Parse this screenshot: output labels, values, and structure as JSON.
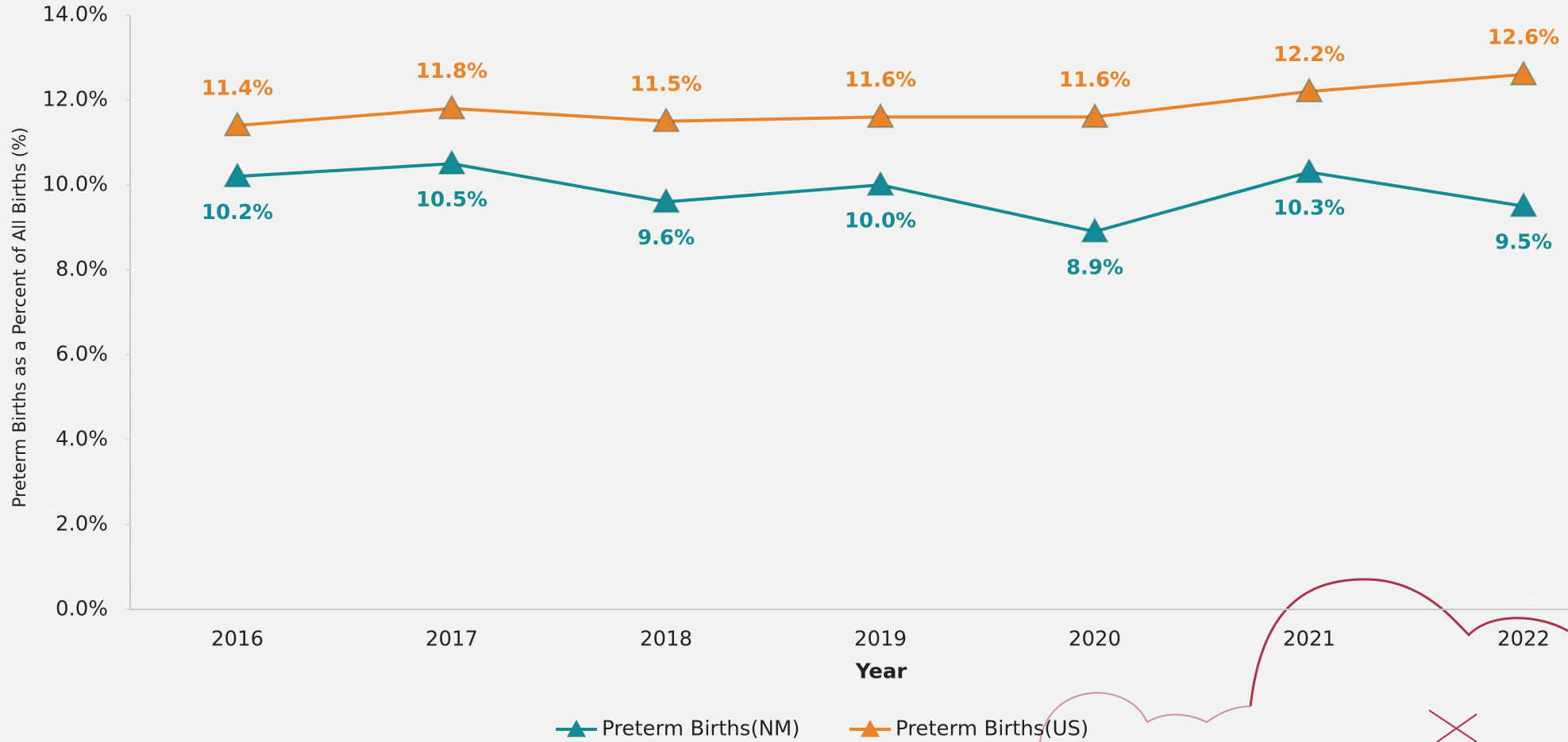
{
  "chart_data": {
    "type": "line",
    "x_label": "Year",
    "y_label": "Preterm Births as a Percent of All Births (%)",
    "categories": [
      "2016",
      "2017",
      "2018",
      "2019",
      "2020",
      "2021",
      "2022"
    ],
    "series": [
      {
        "name": "Preterm Births(NM)",
        "color": "#138a96",
        "values": [
          10.2,
          10.5,
          9.6,
          10.0,
          8.9,
          10.3,
          9.5
        ],
        "value_labels": [
          "10.2%",
          "10.5%",
          "9.6%",
          "10.0%",
          "8.9%",
          "10.3%",
          "9.5%"
        ]
      },
      {
        "name": "Preterm Births(US)",
        "color": "#e8832a",
        "values": [
          11.4,
          11.8,
          11.5,
          11.6,
          11.6,
          12.2,
          12.6
        ],
        "value_labels": [
          "11.4%",
          "11.8%",
          "11.5%",
          "11.6%",
          "11.6%",
          "12.2%",
          "12.6%"
        ]
      }
    ],
    "ylim": [
      0,
      14
    ],
    "yticks": [
      {
        "value": 0,
        "label": "0.0%"
      },
      {
        "value": 2,
        "label": "2.0%"
      },
      {
        "value": 4,
        "label": "4.0%"
      },
      {
        "value": 6,
        "label": "6.0%"
      },
      {
        "value": 8,
        "label": "8.0%"
      },
      {
        "value": 10,
        "label": "10.0%"
      },
      {
        "value": 12,
        "label": "12.0%"
      },
      {
        "value": 14,
        "label": "14.0%"
      }
    ],
    "grid": false,
    "legend": "bottom"
  }
}
